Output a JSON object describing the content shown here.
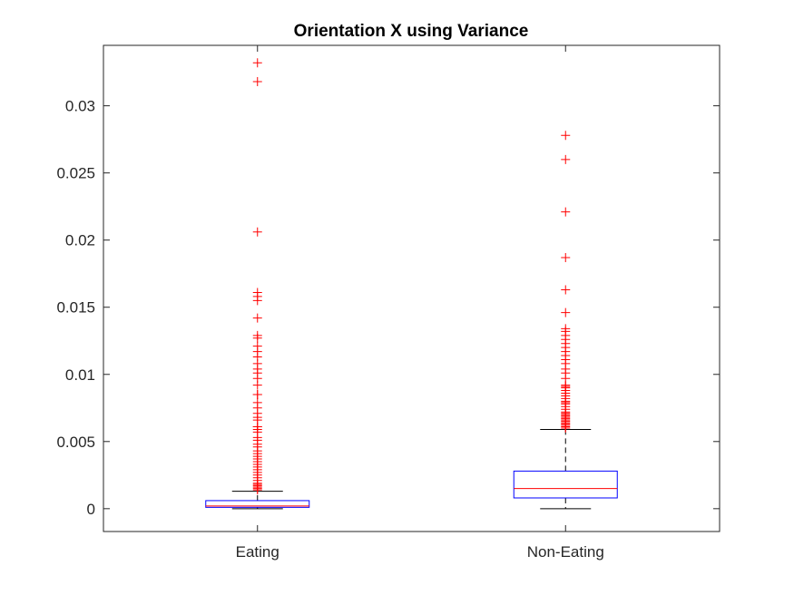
{
  "chart_data": {
    "type": "box",
    "title": "Orientation X using Variance",
    "xlabel": "",
    "ylabel": "",
    "categories": [
      "Eating",
      "Non-Eating"
    ],
    "ylim": [
      -0.0017,
      0.0345
    ],
    "yticks": [
      0,
      0.005,
      0.01,
      0.015,
      0.02,
      0.025,
      0.03
    ],
    "ytick_labels": [
      "0",
      "0.005",
      "0.01",
      "0.015",
      "0.02",
      "0.025",
      "0.03"
    ],
    "grid": false,
    "boxes": [
      {
        "category": "Eating",
        "min": 0.0,
        "q1": 0.0001,
        "median": 0.0002,
        "q3": 0.0006,
        "whisker_high": 0.0013,
        "outliers": [
          0.0332,
          0.0318,
          0.0206,
          0.0161,
          0.0158,
          0.0155,
          0.0142,
          0.0129,
          0.0127,
          0.0121,
          0.0117,
          0.0113,
          0.0108,
          0.0104,
          0.0101,
          0.0097,
          0.0092,
          0.0085,
          0.0085,
          0.0079,
          0.0075,
          0.0071,
          0.0068,
          0.0066,
          0.0061,
          0.0061,
          0.0059,
          0.0057,
          0.0053,
          0.0051,
          0.0048,
          0.0046,
          0.0043,
          0.0041,
          0.0039,
          0.0037,
          0.0035,
          0.0033,
          0.0031,
          0.0029,
          0.0027,
          0.0025,
          0.0023,
          0.0021,
          0.0019,
          0.0018,
          0.0017,
          0.0016,
          0.0015,
          0.0014
        ]
      },
      {
        "category": "Non-Eating",
        "min": 0.0,
        "q1": 0.0008,
        "median": 0.0015,
        "q3": 0.0028,
        "whisker_high": 0.0059,
        "outliers": [
          0.0278,
          0.026,
          0.0221,
          0.0187,
          0.0163,
          0.0146,
          0.0134,
          0.0132,
          0.0129,
          0.0126,
          0.0123,
          0.012,
          0.0117,
          0.0114,
          0.0111,
          0.0108,
          0.0104,
          0.0101,
          0.0097,
          0.0092,
          0.0091,
          0.009,
          0.0088,
          0.0086,
          0.0084,
          0.0082,
          0.008,
          0.0079,
          0.0078,
          0.0076,
          0.0074,
          0.0072,
          0.0071,
          0.007,
          0.0069,
          0.0068,
          0.0067,
          0.0066,
          0.0065,
          0.0064,
          0.0063,
          0.0062,
          0.0061,
          0.006
        ]
      }
    ],
    "colors": {
      "box": "#0000ff",
      "median": "#ff0000",
      "whisker": "#000000",
      "outlier": "#ff0000",
      "axes": "#262626"
    }
  }
}
